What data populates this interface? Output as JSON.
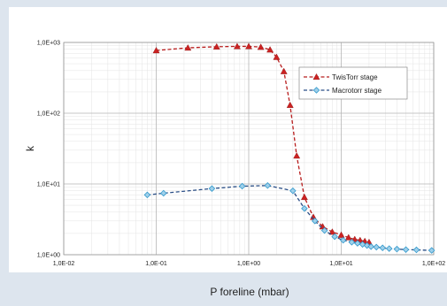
{
  "chart_data": {
    "type": "scatter",
    "xlabel": "P foreline (mbar)",
    "ylabel": "k",
    "x_scale": "log",
    "y_scale": "log",
    "xlim": [
      0.01,
      100
    ],
    "ylim": [
      1,
      1000
    ],
    "x_ticks": [
      "1,0E-02",
      "1,0E-01",
      "1,0E+00",
      "1,0E+01",
      "1,0E+02"
    ],
    "y_ticks": [
      "1,0E+00",
      "1,0E+01",
      "1,0E+02",
      "1,0E+03"
    ],
    "grid": true,
    "legend_position": "top-right",
    "series": [
      {
        "name": "TwisTorr stage",
        "color": "#cc2222",
        "marker": "triangle",
        "line": "dashed",
        "x": [
          0.1,
          0.22,
          0.45,
          0.75,
          1.0,
          1.35,
          1.7,
          2.0,
          2.4,
          2.8,
          3.3,
          4.0,
          5.0,
          6.3,
          8.0,
          10,
          12,
          14,
          16,
          18,
          20
        ],
        "y": [
          770,
          840,
          870,
          880,
          880,
          860,
          790,
          620,
          390,
          130,
          25,
          6.5,
          3.4,
          2.5,
          2.1,
          1.9,
          1.75,
          1.65,
          1.6,
          1.55,
          1.5
        ]
      },
      {
        "name": "Macrotorr stage",
        "color": "#3399cc",
        "marker": "diamond",
        "line": "dashed",
        "x": [
          0.08,
          0.12,
          0.4,
          0.85,
          1.6,
          3.0,
          4.0,
          5.2,
          6.6,
          8.5,
          10.5,
          13,
          15,
          17,
          19,
          21,
          24,
          28,
          33,
          40,
          50,
          65,
          95
        ],
        "y": [
          7.0,
          7.4,
          8.6,
          9.3,
          9.5,
          8.0,
          4.5,
          3.0,
          2.2,
          1.8,
          1.6,
          1.5,
          1.45,
          1.4,
          1.35,
          1.3,
          1.28,
          1.25,
          1.22,
          1.2,
          1.18,
          1.17,
          1.15
        ]
      }
    ]
  }
}
